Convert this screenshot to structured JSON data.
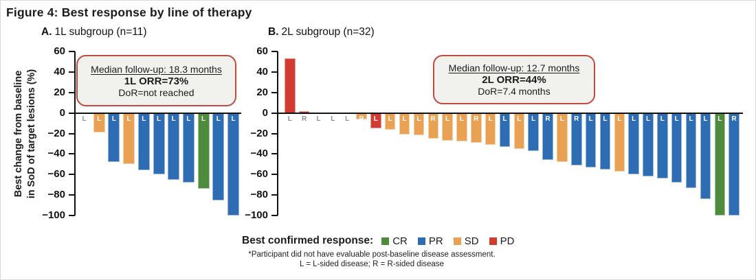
{
  "figure": {
    "title": "Figure 4: Best response by line of therapy",
    "y_axis_label_line1": "Best change from baseline",
    "y_axis_label_line2": "in SoD of target lesions (%)"
  },
  "colors": {
    "CR": "#4e8b3d",
    "PR": "#2e6db4",
    "SD": "#e9a254",
    "PD": "#d23b2f",
    "zero_label": "#8f8f8f",
    "axis": "#111111",
    "annotation_border": "#c1493f",
    "annotation_bg": "#f1f1ee",
    "asterisk": "#b9443c"
  },
  "legend": {
    "title": "Best confirmed response:",
    "items": [
      {
        "code": "CR",
        "label": "CR"
      },
      {
        "code": "PR",
        "label": "PR"
      },
      {
        "code": "SD",
        "label": "SD"
      },
      {
        "code": "PD",
        "label": "PD"
      }
    ]
  },
  "footnotes": [
    "*Participant did not have evaluable post-baseline disease assessment.",
    "L = L-sided disease; R = R-sided disease"
  ],
  "chart_data": [
    {
      "type": "bar",
      "panel_label": "A.",
      "subtitle": "1L subgroup (n=11)",
      "ylabel": "Best change from baseline in SoD of target lesions (%)",
      "ylim": [
        -100,
        60
      ],
      "yticks": [
        60,
        40,
        20,
        0,
        -20,
        -40,
        -60,
        -80,
        -100
      ],
      "grid": false,
      "annotation": {
        "median_followup": "Median follow-up: 18.3 months",
        "orr": "1L ORR=73%",
        "dor": "DoR=not reached"
      },
      "bars": [
        {
          "side": "L",
          "response": null,
          "value": 0,
          "asterisk": true
        },
        {
          "side": "L",
          "response": "SD",
          "value": -19
        },
        {
          "side": "L",
          "response": "PR",
          "value": -48
        },
        {
          "side": "L",
          "response": "SD",
          "value": -50
        },
        {
          "side": "L",
          "response": "PR",
          "value": -56
        },
        {
          "side": "L",
          "response": "PR",
          "value": -60
        },
        {
          "side": "L",
          "response": "PR",
          "value": -65
        },
        {
          "side": "L",
          "response": "PR",
          "value": -68
        },
        {
          "side": "L",
          "response": "CR",
          "value": -74
        },
        {
          "side": "L",
          "response": "PR",
          "value": -85
        },
        {
          "side": "L",
          "response": "PR",
          "value": -100
        }
      ]
    },
    {
      "type": "bar",
      "panel_label": "B.",
      "subtitle": "2L subgroup (n=32)",
      "ylabel": "Best change from baseline in SoD of target lesions (%)",
      "ylim": [
        -100,
        60
      ],
      "yticks": [
        60,
        40,
        20,
        0,
        -20,
        -40,
        -60,
        -80,
        -100
      ],
      "grid": false,
      "annotation": {
        "median_followup": "Median follow-up: 12.7 months",
        "orr": "2L ORR=44%",
        "dor": "DoR=7.4 months"
      },
      "bars": [
        {
          "side": "L",
          "response": "PD",
          "value": 53
        },
        {
          "side": "R",
          "response": "PD",
          "value": 2
        },
        {
          "side": "L",
          "response": null,
          "value": 0
        },
        {
          "side": "L",
          "response": null,
          "value": 0
        },
        {
          "side": "L",
          "response": null,
          "value": 0
        },
        {
          "side": "R",
          "response": "SD",
          "value": -6
        },
        {
          "side": "L",
          "response": "PD",
          "value": -15
        },
        {
          "side": "L",
          "response": "SD",
          "value": -16
        },
        {
          "side": "L",
          "response": "SD",
          "value": -21
        },
        {
          "side": "L",
          "response": "SD",
          "value": -22
        },
        {
          "side": "R",
          "response": "SD",
          "value": -25
        },
        {
          "side": "L",
          "response": "SD",
          "value": -27
        },
        {
          "side": "L",
          "response": "SD",
          "value": -28
        },
        {
          "side": "R",
          "response": "SD",
          "value": -29
        },
        {
          "side": "L",
          "response": "SD",
          "value": -31
        },
        {
          "side": "L",
          "response": "PR",
          "value": -33
        },
        {
          "side": "L",
          "response": "SD",
          "value": -35
        },
        {
          "side": "L",
          "response": "PR",
          "value": -37
        },
        {
          "side": "R",
          "response": "PR",
          "value": -46
        },
        {
          "side": "L",
          "response": "SD",
          "value": -48
        },
        {
          "side": "R",
          "response": "PR",
          "value": -51
        },
        {
          "side": "L",
          "response": "PR",
          "value": -53
        },
        {
          "side": "L",
          "response": "PR",
          "value": -55
        },
        {
          "side": "L",
          "response": "SD",
          "value": -57
        },
        {
          "side": "L",
          "response": "PR",
          "value": -60
        },
        {
          "side": "L",
          "response": "PR",
          "value": -62
        },
        {
          "side": "L",
          "response": "PR",
          "value": -64
        },
        {
          "side": "L",
          "response": "PR",
          "value": -68
        },
        {
          "side": "L",
          "response": "PR",
          "value": -73
        },
        {
          "side": "L",
          "response": "PR",
          "value": -84
        },
        {
          "side": "L",
          "response": "CR",
          "value": -100
        },
        {
          "side": "R",
          "response": "PR",
          "value": -100
        }
      ]
    }
  ]
}
